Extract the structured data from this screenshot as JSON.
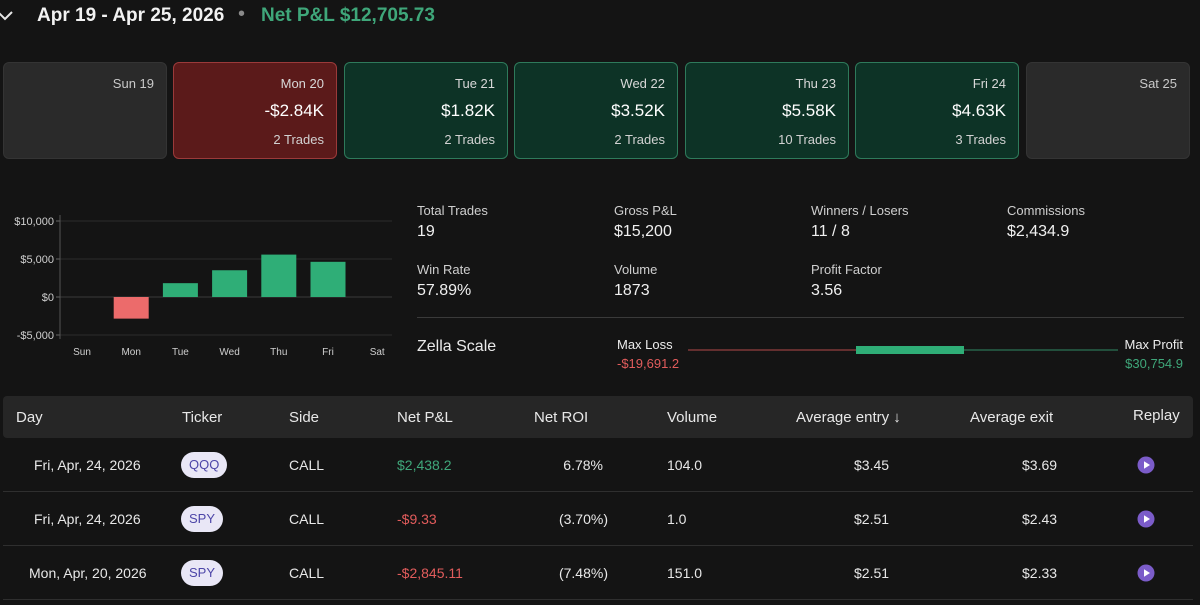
{
  "header": {
    "date_range": "Apr 19 - Apr 25, 2026",
    "separator": "•",
    "net_label": "Net P&L",
    "net_value": "$12,705.73"
  },
  "days": [
    {
      "name": "Sun 19",
      "value": "",
      "trades": "",
      "status": "empty"
    },
    {
      "name": "Mon 20",
      "value": "-$2.84K",
      "trades": "2 Trades",
      "status": "loss"
    },
    {
      "name": "Tue 21",
      "value": "$1.82K",
      "trades": "2 Trades",
      "status": "win"
    },
    {
      "name": "Wed 22",
      "value": "$3.52K",
      "trades": "2 Trades",
      "status": "win"
    },
    {
      "name": "Thu 23",
      "value": "$5.58K",
      "trades": "10 Trades",
      "status": "win"
    },
    {
      "name": "Fri 24",
      "value": "$4.63K",
      "trades": "3 Trades",
      "status": "win"
    },
    {
      "name": "Sat 25",
      "value": "",
      "trades": "",
      "status": "empty"
    }
  ],
  "chart_data": {
    "type": "bar",
    "categories": [
      "Sun",
      "Mon",
      "Tue",
      "Wed",
      "Thu",
      "Fri",
      "Sat"
    ],
    "values": [
      0,
      -2845,
      1820,
      3520,
      5580,
      4630,
      0
    ],
    "yticks": [
      10000,
      5000,
      0,
      -5000
    ],
    "ytick_labels": [
      "$10,000",
      "$5,000",
      "$0",
      "-$5,000"
    ],
    "ylim": [
      -5000,
      10000
    ],
    "colors": {
      "positive": "#2fae77",
      "negative": "#ec6b6b"
    }
  },
  "stats": {
    "total_trades": {
      "label": "Total Trades",
      "value": "19"
    },
    "gross_pl": {
      "label": "Gross P&L",
      "value": "$15,200"
    },
    "winners_losers": {
      "label": "Winners / Losers",
      "value": "11 / 8"
    },
    "commissions": {
      "label": "Commissions",
      "value": "$2,434.9"
    },
    "win_rate": {
      "label": "Win Rate",
      "value": "57.89%"
    },
    "volume": {
      "label": "Volume",
      "value": "1873"
    },
    "profit_factor": {
      "label": "Profit Factor",
      "value": "3.56"
    }
  },
  "zella": {
    "label": "Zella Scale",
    "max_loss_label": "Max Loss",
    "max_loss_value": "-$19,691.2",
    "max_profit_label": "Max Profit",
    "max_profit_value": "$30,754.9"
  },
  "table": {
    "headers": {
      "day": "Day",
      "ticker": "Ticker",
      "side": "Side",
      "net_pl": "Net P&L",
      "net_roi": "Net ROI",
      "volume": "Volume",
      "avg_entry": "Average entry ↓",
      "avg_exit": "Average exit",
      "replay": "Replay"
    },
    "rows": [
      {
        "day": "Fri, Apr, 24, 2026",
        "ticker": "QQQ",
        "side": "CALL",
        "net_pl": "$2,438.2",
        "pl_sign": "pos",
        "net_roi": "6.78%",
        "volume": "104.0",
        "avg_entry": "$3.45",
        "avg_exit": "$3.69"
      },
      {
        "day": "Fri, Apr, 24, 2026",
        "ticker": "SPY",
        "side": "CALL",
        "net_pl": "-$9.33",
        "pl_sign": "neg",
        "net_roi": "(3.70%)",
        "volume": "1.0",
        "avg_entry": "$2.51",
        "avg_exit": "$2.43"
      },
      {
        "day": "Mon, Apr, 20, 2026",
        "ticker": "SPY",
        "side": "CALL",
        "net_pl": "-$2,845.11",
        "pl_sign": "neg",
        "net_roi": "(7.48%)",
        "volume": "151.0",
        "avg_entry": "$2.51",
        "avg_exit": "$2.33"
      }
    ]
  },
  "colors": {
    "accent": "#3fa77a",
    "loss": "#e25c5c",
    "replay": "#7b5cc9"
  }
}
